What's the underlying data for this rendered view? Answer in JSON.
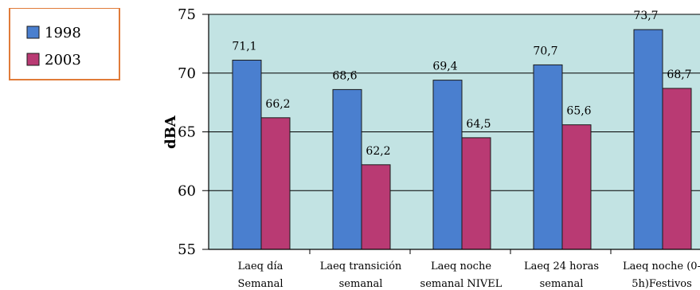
{
  "chart_data": {
    "type": "bar",
    "categories": [
      [
        "Laeq día",
        "Semanal"
      ],
      [
        "Laeq transición",
        "semanal"
      ],
      [
        "Laeq noche",
        "semanal NIVEL"
      ],
      [
        "Laeq 24 horas",
        "semanal"
      ],
      [
        "Laeq noche (0-",
        "5h)Festivos"
      ]
    ],
    "series": [
      {
        "name": "1998",
        "values": [
          71.1,
          68.6,
          69.4,
          70.7,
          73.7
        ],
        "labels": [
          "71,1",
          "68,6",
          "69,4",
          "70,7",
          "73,7"
        ],
        "color": "#4a7fcf"
      },
      {
        "name": "2003",
        "values": [
          66.2,
          62.2,
          64.5,
          65.6,
          68.7
        ],
        "labels": [
          "66,2",
          "62,2",
          "64,5",
          "65,6",
          "68,7"
        ],
        "color": "#b93a73"
      }
    ],
    "ylabel": "dBA",
    "ylim": [
      55,
      75
    ],
    "yticks": [
      "55",
      "60",
      "65",
      "70",
      "75"
    ],
    "legend_position": "top-left",
    "plot_background": "#c2e3e3",
    "legend_border_color": "#e07b39"
  }
}
